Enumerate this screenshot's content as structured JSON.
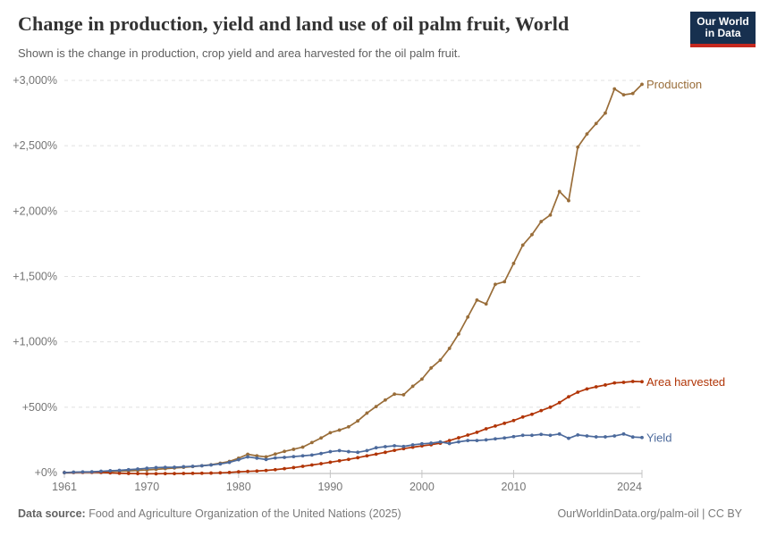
{
  "header": {
    "title": "Change in production, yield and land use of oil palm fruit, World",
    "subtitle": "Shown is the change in production, crop yield and area harvested for the oil palm fruit.",
    "logo": {
      "line1": "Our World",
      "line2": "in Data"
    }
  },
  "footer": {
    "source_label": "Data source:",
    "source_text": " Food and Agriculture Organization of the United Nations (2025)",
    "link_text": "OurWorldinData.org/palm-oil | CC BY"
  },
  "colors": {
    "production": "#996d39",
    "area_harvested": "#b13507",
    "yield": "#4c6a9c",
    "gridline": "#e0e0e0",
    "axis": "#c4c4c4",
    "tick_label": "#757575"
  },
  "chart_data": {
    "type": "line",
    "title": "Change in production, yield and land use of oil palm fruit, World",
    "xlabel": "",
    "ylabel": "",
    "grid": "dashed horizontal gridlines",
    "legend": "end-of-line labels",
    "ylim": [
      -10,
      3000
    ],
    "xlim": [
      1961,
      2024
    ],
    "yticks": [
      0,
      500,
      1000,
      1500,
      2000,
      2500,
      3000
    ],
    "ytick_labels": [
      "+0%",
      "+500%",
      "+1,000%",
      "+1,500%",
      "+2,000%",
      "+2,500%",
      "+3,000%"
    ],
    "xticks": [
      1961,
      1970,
      1980,
      1990,
      2000,
      2010,
      2024
    ],
    "x": [
      1961,
      1962,
      1963,
      1964,
      1965,
      1966,
      1967,
      1968,
      1969,
      1970,
      1971,
      1972,
      1973,
      1974,
      1975,
      1976,
      1977,
      1978,
      1979,
      1980,
      1981,
      1982,
      1983,
      1984,
      1985,
      1986,
      1987,
      1988,
      1989,
      1990,
      1991,
      1992,
      1993,
      1994,
      1995,
      1996,
      1997,
      1998,
      1999,
      2000,
      2001,
      2002,
      2003,
      2004,
      2005,
      2006,
      2007,
      2008,
      2009,
      2010,
      2011,
      2012,
      2013,
      2014,
      2015,
      2016,
      2017,
      2018,
      2019,
      2020,
      2021,
      2022,
      2023,
      2024
    ],
    "series": [
      {
        "name": "Production",
        "color": "#996d39",
        "values": [
          0,
          2,
          3,
          5,
          7,
          9,
          11,
          13,
          16,
          20,
          25,
          30,
          35,
          40,
          46,
          52,
          60,
          72,
          85,
          110,
          140,
          128,
          120,
          142,
          162,
          178,
          195,
          230,
          265,
          305,
          325,
          350,
          395,
          455,
          505,
          555,
          600,
          595,
          660,
          715,
          800,
          860,
          950,
          1060,
          1190,
          1320,
          1290,
          1440,
          1460,
          1600,
          1740,
          1820,
          1920,
          1970,
          2150,
          2080,
          2490,
          2590,
          2670,
          2750,
          2935,
          2890,
          2900,
          2970
        ]
      },
      {
        "name": "Area harvested",
        "color": "#b13507",
        "values": [
          0,
          1,
          2,
          2,
          1,
          -2,
          -5,
          -7,
          -8,
          -9,
          -9,
          -8,
          -8,
          -7,
          -6,
          -5,
          -4,
          -2,
          1,
          6,
          9,
          12,
          16,
          22,
          30,
          38,
          48,
          58,
          68,
          79,
          90,
          101,
          114,
          128,
          141,
          155,
          170,
          183,
          194,
          204,
          213,
          225,
          245,
          266,
          287,
          308,
          335,
          356,
          377,
          398,
          425,
          446,
          474,
          500,
          535,
          580,
          615,
          640,
          656,
          670,
          686,
          690,
          697,
          695
        ]
      },
      {
        "name": "Yield",
        "color": "#4c6a9c",
        "values": [
          0,
          3,
          5,
          6,
          10,
          14,
          17,
          22,
          27,
          33,
          38,
          40,
          41,
          45,
          48,
          52,
          58,
          66,
          78,
          98,
          120,
          110,
          100,
          112,
          116,
          122,
          128,
          134,
          146,
          160,
          168,
          160,
          155,
          168,
          190,
          198,
          205,
          200,
          212,
          220,
          225,
          235,
          222,
          235,
          245,
          245,
          250,
          258,
          265,
          275,
          285,
          285,
          292,
          285,
          295,
          262,
          288,
          280,
          273,
          273,
          280,
          295,
          272,
          268
        ]
      }
    ]
  }
}
